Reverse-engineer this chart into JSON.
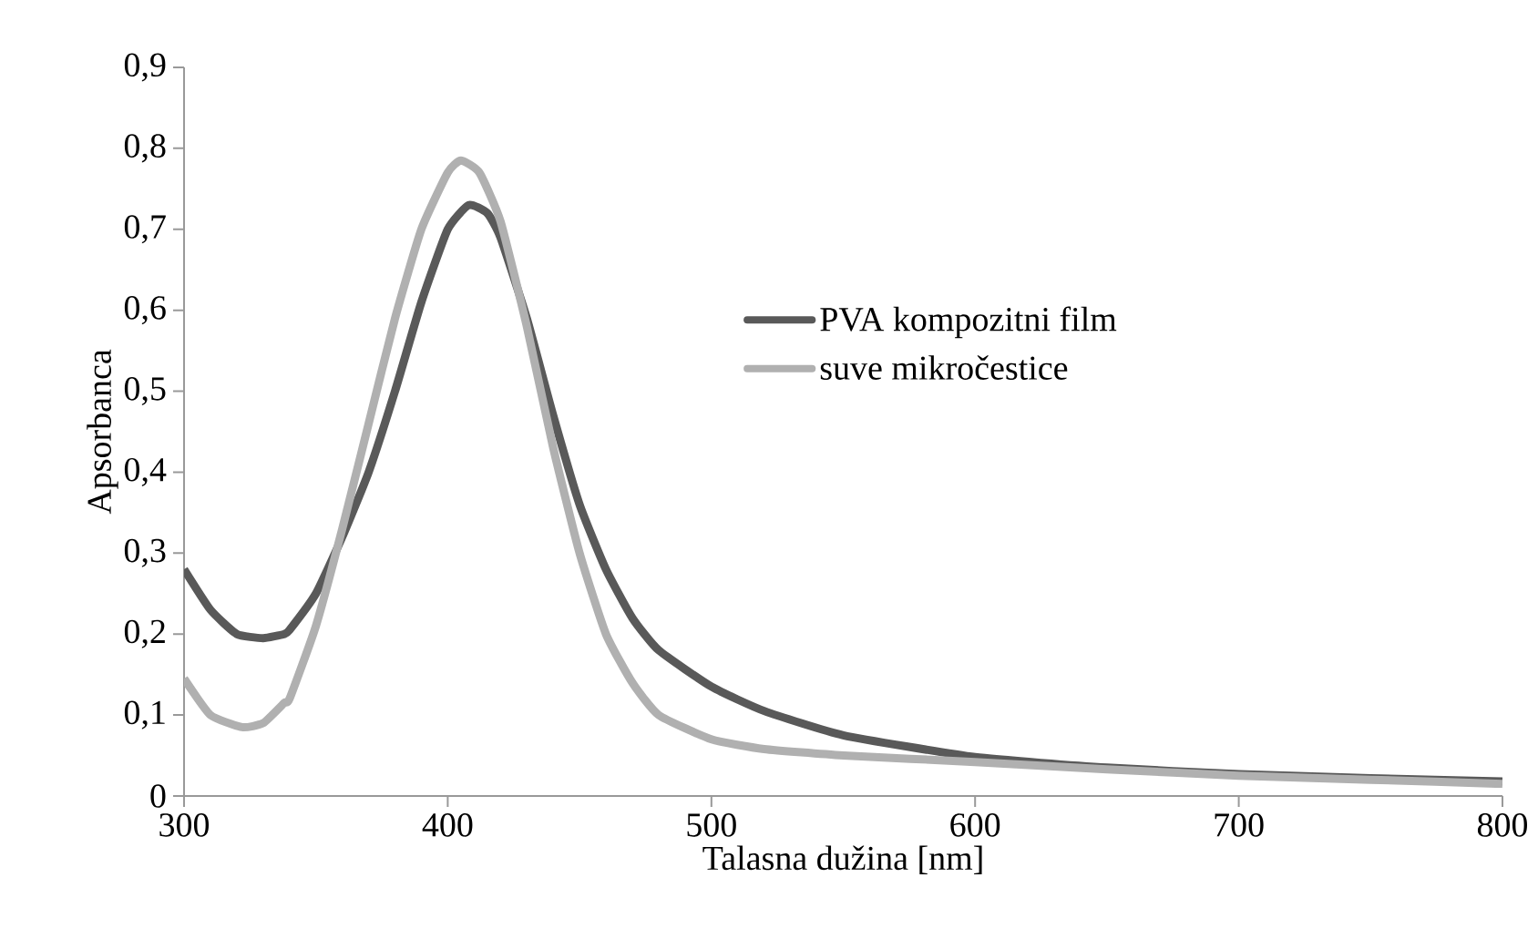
{
  "chart_data": {
    "type": "line",
    "xlabel": "Talasna dužina [nm]",
    "ylabel": "Apsorbanca",
    "legend": "right",
    "grid": false,
    "marker": "none",
    "line_style": "solid",
    "xlim": [
      300,
      800
    ],
    "xticks": [
      300,
      400,
      500,
      600,
      700,
      800
    ],
    "ylim": [
      0,
      0.9
    ],
    "yticks": [
      0,
      {
        "value": 0.1,
        "label": "0,1"
      },
      {
        "value": 0.2,
        "label": "0,2"
      },
      {
        "value": 0.3,
        "label": "0,3"
      },
      {
        "value": 0.4,
        "label": "0,4"
      },
      {
        "value": 0.5,
        "label": "0,5"
      },
      {
        "value": 0.6,
        "label": "0,6"
      },
      {
        "value": 0.7,
        "label": "0,7"
      },
      {
        "value": 0.8,
        "label": "0,8"
      },
      {
        "value": 0.9,
        "label": "0,9"
      }
    ],
    "series": [
      {
        "name": "PVA kompozitni film",
        "color": "#595959",
        "x": [
          300,
          310,
          320,
          330,
          338,
          340,
          350,
          360,
          370,
          380,
          390,
          400,
          408,
          415,
          420,
          430,
          440,
          450,
          460,
          470,
          480,
          500,
          520,
          550,
          600,
          650,
          700,
          750,
          800
        ],
        "values": [
          0.28,
          0.23,
          0.2,
          0.195,
          0.2,
          0.205,
          0.25,
          0.32,
          0.4,
          0.5,
          0.61,
          0.7,
          0.73,
          0.72,
          0.69,
          0.59,
          0.47,
          0.36,
          0.28,
          0.22,
          0.18,
          0.135,
          0.105,
          0.075,
          0.048,
          0.035,
          0.027,
          0.022,
          0.018
        ]
      },
      {
        "name": "suve mikročestice",
        "color": "#b0b0b0",
        "x": [
          300,
          310,
          322,
          330,
          338,
          340,
          350,
          360,
          370,
          380,
          390,
          400,
          405,
          412,
          420,
          430,
          440,
          450,
          460,
          470,
          480,
          500,
          520,
          550,
          600,
          650,
          700,
          750,
          800
        ],
        "values": [
          0.145,
          0.1,
          0.085,
          0.09,
          0.115,
          0.12,
          0.21,
          0.33,
          0.46,
          0.59,
          0.7,
          0.77,
          0.785,
          0.77,
          0.71,
          0.58,
          0.43,
          0.3,
          0.2,
          0.14,
          0.1,
          0.07,
          0.058,
          0.05,
          0.042,
          0.033,
          0.025,
          0.02,
          0.015
        ]
      }
    ]
  }
}
